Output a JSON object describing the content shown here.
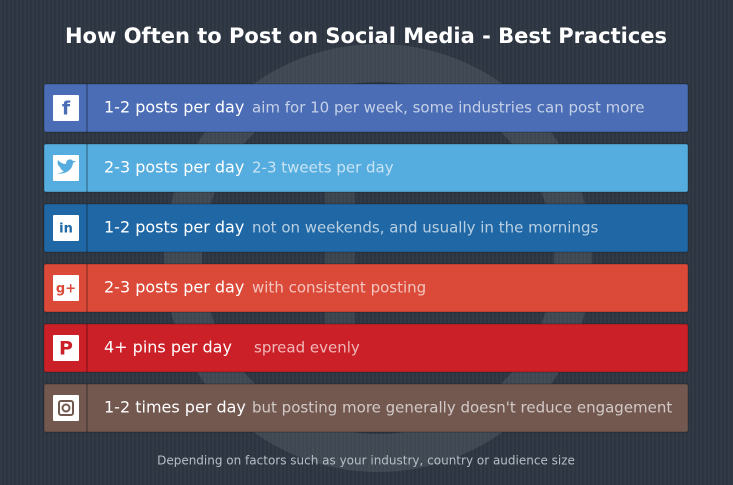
{
  "header": {
    "title": "How Often to Post on Social Media - Best Practices"
  },
  "rows": [
    {
      "network": "facebook",
      "icon": "f",
      "color": "#4a6db5",
      "frequency": "1-2 posts per day",
      "note": "aim for 10 per week, some industries can post more"
    },
    {
      "network": "twitter",
      "color": "#55acdf",
      "frequency": "2-3 posts per day",
      "note": "2-3 tweets per day"
    },
    {
      "network": "linkedin",
      "icon": "in",
      "color": "#1f68a5",
      "frequency": "1-2 posts per day",
      "note": "not on weekends, and usually in the mornings"
    },
    {
      "network": "google-plus",
      "icon": "g+",
      "color": "#db4a39",
      "frequency": "2-3 posts per day",
      "note": "with consistent posting"
    },
    {
      "network": "pinterest",
      "icon": "P",
      "color": "#cc2028",
      "frequency": "4+ pins per day",
      "note": "spread evenly"
    },
    {
      "network": "instagram",
      "color": "#735850",
      "frequency": "1-2 times per day",
      "note": "but posting more generally doesn't reduce engagement"
    }
  ],
  "footer": {
    "text": "Depending on factors such as your industry, country or audience size"
  }
}
